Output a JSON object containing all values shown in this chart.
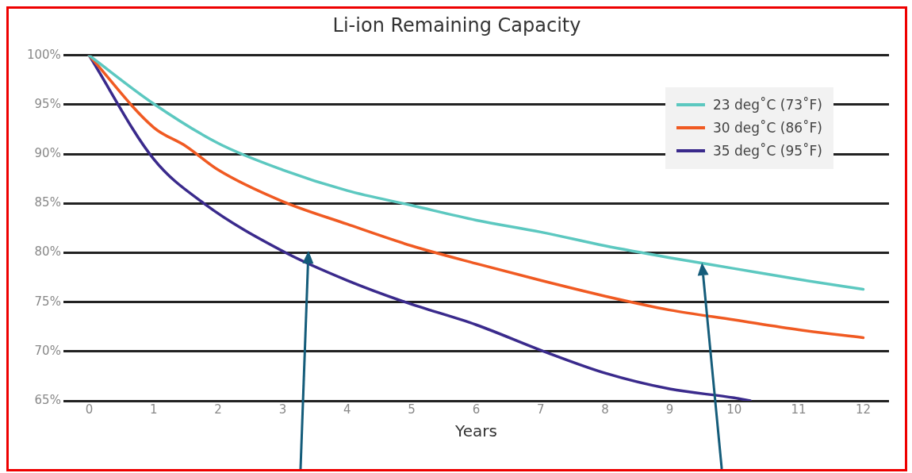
{
  "chart_data": {
    "type": "line",
    "title": "Li-ion Remaining Capacity",
    "xlabel": "Years",
    "xlim": [
      -0.4,
      12.4
    ],
    "xticks": [
      0,
      1,
      2,
      3,
      4,
      5,
      6,
      7,
      8,
      9,
      10,
      11,
      12
    ],
    "ylim": [
      65,
      100
    ],
    "yticks": [
      {
        "value": 65,
        "label": "65%"
      },
      {
        "value": 70,
        "label": "70%"
      },
      {
        "value": 75,
        "label": "75%"
      },
      {
        "value": 80,
        "label": "80%"
      },
      {
        "value": 85,
        "label": "85%"
      },
      {
        "value": 90,
        "label": "90%"
      },
      {
        "value": 95,
        "label": "95%"
      },
      {
        "value": 100,
        "label": "100%"
      }
    ],
    "grid": "y",
    "legend": "top right",
    "marker": "none",
    "line_style": "solid",
    "series": [
      {
        "name": "23 deg˚C (73˚F)",
        "color": "#5cc8c0",
        "x": [
          0,
          1,
          2,
          3,
          4,
          5,
          6,
          7,
          8,
          9,
          10,
          11,
          12
        ],
        "values": [
          100,
          95.1,
          91.1,
          88.4,
          86.3,
          84.8,
          83.3,
          82.1,
          80.7,
          79.5,
          78.4,
          77.3,
          76.3
        ]
      },
      {
        "name": "30 deg˚C (86˚F)",
        "color": "#f05a22",
        "x": [
          0,
          1,
          1.5,
          2,
          3,
          4,
          5,
          6,
          7,
          8,
          9,
          10,
          11,
          12
        ],
        "values": [
          100,
          92.7,
          90.8,
          88.4,
          85.2,
          82.9,
          80.7,
          78.9,
          77.2,
          75.6,
          74.2,
          73.2,
          72.2,
          71.4
        ]
      },
      {
        "name": "35 deg˚C (95˚F)",
        "color": "#3a2a8c",
        "x": [
          0,
          1,
          1.78,
          3.05,
          4,
          4.9,
          6,
          7.05,
          8,
          9,
          10,
          10.25
        ],
        "values": [
          100,
          89.5,
          85,
          80,
          77.2,
          75,
          72.7,
          70,
          67.8,
          66.2,
          65.3,
          65
        ]
      }
    ]
  }
}
